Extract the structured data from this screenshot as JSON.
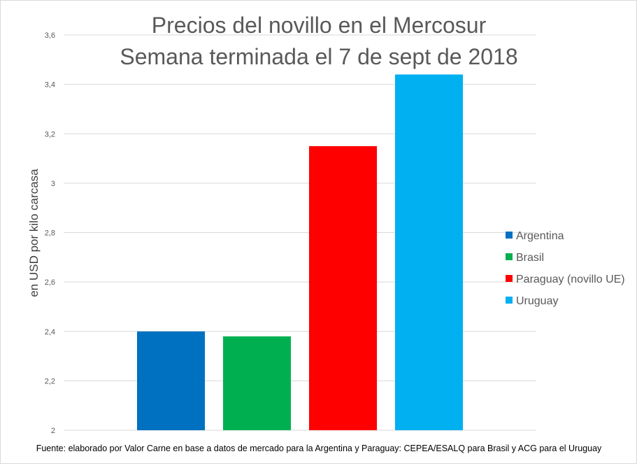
{
  "chart_data": {
    "type": "bar",
    "title_lines": [
      "Precios del novillo en el Mercosur",
      "Semana terminada el 7 de sept de 2018"
    ],
    "xlabel": "",
    "ylabel": "en USD por kilo carcasa",
    "ylim": [
      2,
      3.6
    ],
    "yticks": [
      {
        "value": 2.0,
        "label": "2"
      },
      {
        "value": 2.2,
        "label": "2,2"
      },
      {
        "value": 2.4,
        "label": "2,4"
      },
      {
        "value": 2.6,
        "label": "2,6"
      },
      {
        "value": 2.8,
        "label": "2,8"
      },
      {
        "value": 3.0,
        "label": "3"
      },
      {
        "value": 3.2,
        "label": "3,2"
      },
      {
        "value": 3.4,
        "label": "3,4"
      },
      {
        "value": 3.6,
        "label": "3,6"
      }
    ],
    "grid": true,
    "legend_position": "right",
    "series": [
      {
        "name": "Argentina",
        "value": 2.4,
        "color": "#0070c0"
      },
      {
        "name": "Brasil",
        "value": 2.38,
        "color": "#00b050"
      },
      {
        "name": "Paraguay (novillo UE)",
        "value": 3.15,
        "color": "#ff0000"
      },
      {
        "name": "Uruguay",
        "value": 3.44,
        "color": "#00b0f0"
      }
    ],
    "source": "Fuente: elaborado por Valor Carne en base a datos de mercado para la Argentina y Paraguay: CEPEA/ESALQ para Brasil y ACG para el Uruguay",
    "colors": {
      "grid": "#d9d9d9",
      "axis": "#d9d9d9",
      "text": "#595959"
    }
  }
}
